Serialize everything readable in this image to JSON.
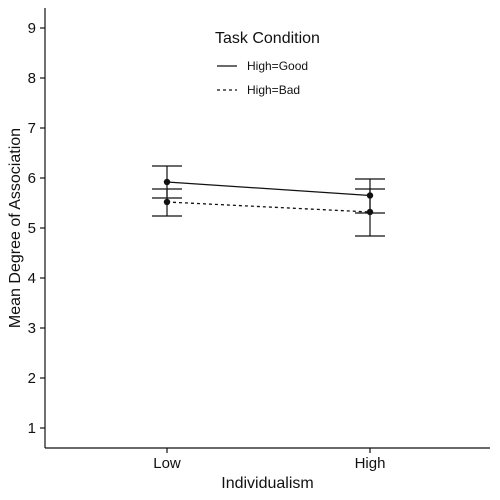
{
  "chart_data": {
    "type": "line",
    "xlabel": "Individualism",
    "ylabel": "Mean Degree of Association",
    "categories": [
      "Low",
      "High"
    ],
    "ylim": [
      0.6,
      9.4
    ],
    "yticks": [
      1,
      2,
      3,
      4,
      5,
      6,
      7,
      8,
      9
    ],
    "grid": false,
    "legend": {
      "title": "Task Condition",
      "placement": "top-center"
    },
    "series": [
      {
        "name": "High=Good",
        "line_style": "solid",
        "values": [
          5.92,
          5.65
        ],
        "error_low": [
          5.6,
          5.3
        ],
        "error_high": [
          6.24,
          5.98
        ]
      },
      {
        "name": "High=Bad",
        "line_style": "dashed",
        "values": [
          5.52,
          5.32
        ],
        "error_low": [
          5.24,
          4.84
        ],
        "error_high": [
          5.78,
          5.78
        ]
      }
    ]
  }
}
